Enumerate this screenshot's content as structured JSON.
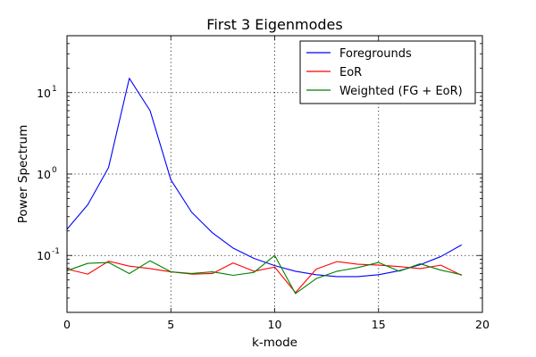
{
  "chart_data": {
    "type": "line",
    "title": "First 3 Eigenmodes",
    "xlabel": "k-mode",
    "ylabel": "Power Spectrum",
    "xlim": [
      0,
      20
    ],
    "ylim": [
      0.02,
      50
    ],
    "yscale": "log",
    "grid": true,
    "legend_placement": "top-right",
    "x_ticks": [
      0,
      5,
      10,
      15,
      20
    ],
    "y_ticks": [
      {
        "value": 0.1,
        "base": "10",
        "exp": "-1"
      },
      {
        "value": 1,
        "base": "10",
        "exp": "0"
      },
      {
        "value": 10,
        "base": "10",
        "exp": "1"
      }
    ],
    "x": [
      0,
      1,
      2,
      3,
      4,
      5,
      6,
      7,
      8,
      9,
      10,
      11,
      12,
      13,
      14,
      15,
      16,
      17,
      18,
      19
    ],
    "series": [
      {
        "name": "Foregrounds",
        "color": "#0000ff",
        "values": [
          0.21,
          0.42,
          1.2,
          15.0,
          6.0,
          0.85,
          0.34,
          0.19,
          0.123,
          0.092,
          0.075,
          0.064,
          0.058,
          0.055,
          0.055,
          0.058,
          0.065,
          0.077,
          0.097,
          0.135
        ]
      },
      {
        "name": "EoR",
        "color": "#ff0000",
        "values": [
          0.068,
          0.059,
          0.085,
          0.074,
          0.069,
          0.063,
          0.059,
          0.06,
          0.081,
          0.064,
          0.072,
          0.035,
          0.068,
          0.084,
          0.078,
          0.076,
          0.073,
          0.069,
          0.076,
          0.057
        ]
      },
      {
        "name": "Weighted (FG + EoR)",
        "color": "#008000",
        "values": [
          0.065,
          0.08,
          0.082,
          0.06,
          0.086,
          0.063,
          0.06,
          0.063,
          0.057,
          0.062,
          0.1,
          0.034,
          0.052,
          0.064,
          0.071,
          0.082,
          0.064,
          0.079,
          0.066,
          0.058
        ]
      }
    ]
  }
}
